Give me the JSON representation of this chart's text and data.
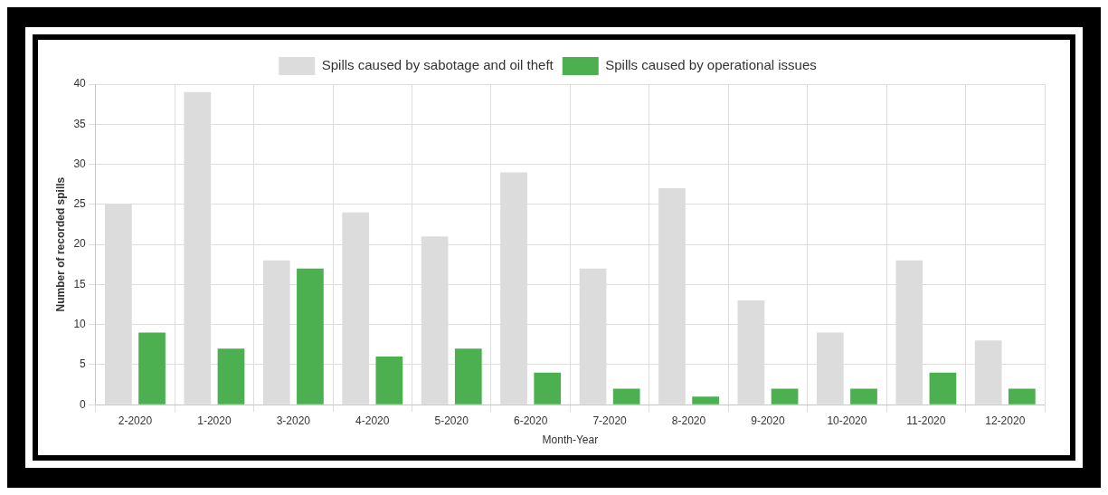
{
  "chart_data": {
    "type": "bar",
    "xlabel": "Month-Year",
    "ylabel": "Number of recorded spills",
    "categories": [
      "2-2020",
      "1-2020",
      "3-2020",
      "4-2020",
      "5-2020",
      "6-2020",
      "7-2020",
      "8-2020",
      "9-2020",
      "10-2020",
      "11-2020",
      "12-2020"
    ],
    "series": [
      {
        "name": "Spills caused by sabotage and oil theft",
        "color": "#dcdcdc",
        "values": [
          25,
          39,
          18,
          24,
          21,
          29,
          17,
          27,
          13,
          9,
          18,
          8
        ]
      },
      {
        "name": "Spills caused by operational issues",
        "color": "#4cb050",
        "values": [
          9,
          7,
          17,
          6,
          7,
          4,
          2,
          1,
          2,
          2,
          4,
          2
        ]
      }
    ],
    "ylim": [
      0,
      40
    ],
    "yticks": [
      0,
      5,
      10,
      15,
      20,
      25,
      30,
      35,
      40
    ],
    "grid": true,
    "legend": "top"
  }
}
